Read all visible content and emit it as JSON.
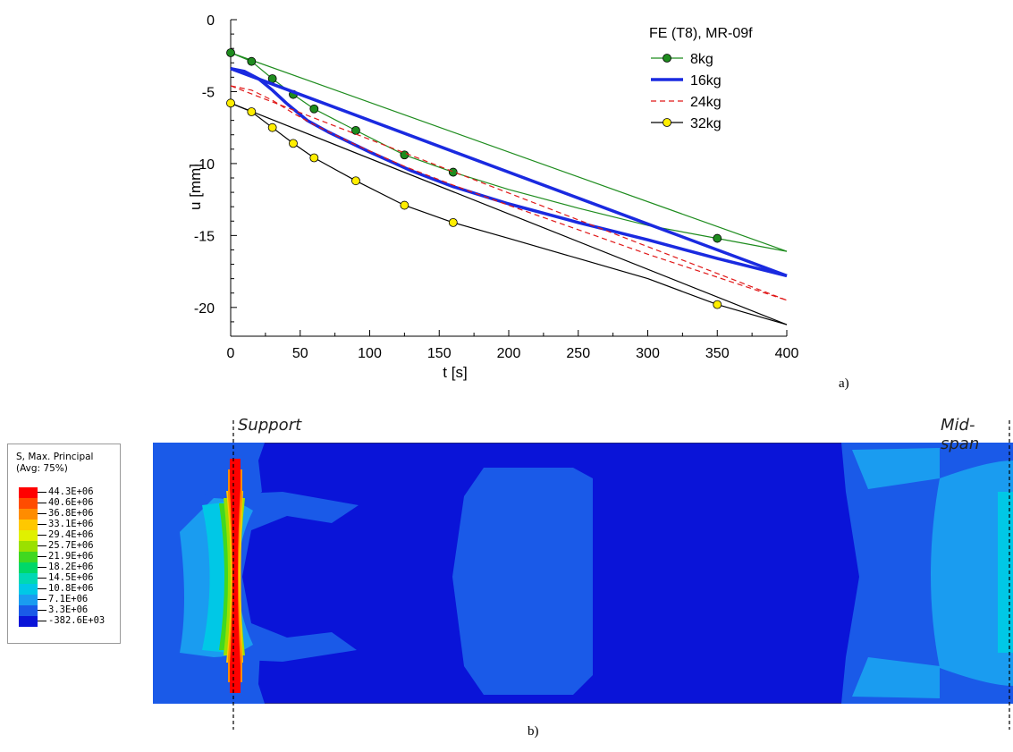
{
  "figure": {
    "caption_a": "a)",
    "caption_b": "b)"
  },
  "chart_data": {
    "type": "line",
    "xlabel": "t  [s]",
    "ylabel": "u  [mm]",
    "xlim": [
      0,
      400
    ],
    "ylim": [
      -22,
      0
    ],
    "xticks": [
      0,
      50,
      100,
      150,
      200,
      250,
      300,
      350,
      400
    ],
    "yticks": [
      0,
      -5,
      -10,
      -15,
      -20
    ],
    "grid": false,
    "legend_title": "FE (T8), MR-09f",
    "legend_position": "top-right",
    "series": [
      {
        "name": "8kg",
        "color": "#1e8c1e",
        "style": "solid-thin",
        "marker": "circle",
        "marker_fill": "#1e8c1e",
        "curve": [
          [
            0,
            -2.3
          ],
          [
            15,
            -2.9
          ],
          [
            30,
            -4.1
          ],
          [
            45,
            -5.2
          ],
          [
            60,
            -6.2
          ],
          [
            90,
            -7.7
          ],
          [
            125,
            -9.4
          ],
          [
            160,
            -10.6
          ],
          [
            200,
            -11.8
          ],
          [
            250,
            -13.1
          ],
          [
            300,
            -14.3
          ],
          [
            350,
            -15.2
          ],
          [
            400,
            -16.1
          ]
        ],
        "markers": [
          [
            0,
            -2.3
          ],
          [
            15,
            -2.9
          ],
          [
            30,
            -4.1
          ],
          [
            45,
            -5.2
          ],
          [
            60,
            -6.2
          ],
          [
            90,
            -7.7
          ],
          [
            125,
            -9.4
          ],
          [
            160,
            -10.6
          ],
          [
            350,
            -15.2
          ]
        ],
        "line": [
          [
            0,
            -2.3
          ],
          [
            400,
            -16.1
          ]
        ]
      },
      {
        "name": "16kg",
        "color": "#1a2ae0",
        "style": "solid-thick",
        "marker": "none",
        "curve": [
          [
            0,
            -3.4
          ],
          [
            10,
            -3.6
          ],
          [
            20,
            -4.1
          ],
          [
            30,
            -4.9
          ],
          [
            40,
            -5.8
          ],
          [
            55,
            -7.0
          ],
          [
            70,
            -7.8
          ],
          [
            100,
            -9.2
          ],
          [
            130,
            -10.5
          ],
          [
            160,
            -11.6
          ],
          [
            200,
            -12.8
          ],
          [
            250,
            -14.1
          ],
          [
            300,
            -15.3
          ],
          [
            350,
            -16.6
          ],
          [
            400,
            -17.8
          ]
        ],
        "line": [
          [
            0,
            -3.4
          ],
          [
            400,
            -17.8
          ]
        ]
      },
      {
        "name": "24kg",
        "color": "#e01818",
        "style": "dashed",
        "marker": "none",
        "curve": [
          [
            0,
            -4.6
          ],
          [
            15,
            -4.9
          ],
          [
            30,
            -5.6
          ],
          [
            45,
            -6.5
          ],
          [
            60,
            -7.3
          ],
          [
            90,
            -8.7
          ],
          [
            125,
            -10.2
          ],
          [
            160,
            -11.5
          ],
          [
            200,
            -12.9
          ],
          [
            250,
            -14.6
          ],
          [
            300,
            -16.3
          ],
          [
            350,
            -17.9
          ],
          [
            400,
            -19.5
          ]
        ],
        "line": [
          [
            0,
            -4.6
          ],
          [
            400,
            -19.5
          ]
        ]
      },
      {
        "name": "32kg",
        "color": "#000000",
        "style": "solid-thin",
        "marker": "circle",
        "marker_fill": "#ffee00",
        "curve": [
          [
            0,
            -5.8
          ],
          [
            15,
            -6.4
          ],
          [
            30,
            -7.5
          ],
          [
            45,
            -8.6
          ],
          [
            60,
            -9.6
          ],
          [
            90,
            -11.2
          ],
          [
            125,
            -12.9
          ],
          [
            160,
            -14.1
          ],
          [
            200,
            -15.2
          ],
          [
            250,
            -16.6
          ],
          [
            300,
            -18.0
          ],
          [
            350,
            -19.8
          ],
          [
            400,
            -21.2
          ]
        ],
        "markers": [
          [
            0,
            -5.8
          ],
          [
            15,
            -6.4
          ],
          [
            30,
            -7.5
          ],
          [
            45,
            -8.6
          ],
          [
            60,
            -9.6
          ],
          [
            90,
            -11.2
          ],
          [
            125,
            -12.9
          ],
          [
            160,
            -14.1
          ],
          [
            350,
            -19.8
          ]
        ],
        "line": [
          [
            0,
            -5.8
          ],
          [
            400,
            -21.2
          ]
        ]
      }
    ]
  },
  "contour": {
    "support_label": "Support",
    "midspan_label": "Mid-span",
    "legend_title_1": "S, Max. Principal",
    "legend_title_2": "(Avg: 75%)",
    "levels": [
      {
        "label": "44.3E+06",
        "color": "#ff0000"
      },
      {
        "label": "40.6E+06",
        "color": "#ff4c00"
      },
      {
        "label": "36.8E+06",
        "color": "#ff8c00"
      },
      {
        "label": "33.1E+06",
        "color": "#ffc800"
      },
      {
        "label": "29.4E+06",
        "color": "#e0f000"
      },
      {
        "label": "25.7E+06",
        "color": "#9ae000"
      },
      {
        "label": "21.9E+06",
        "color": "#40d820"
      },
      {
        "label": "18.2E+06",
        "color": "#00d868"
      },
      {
        "label": "14.5E+06",
        "color": "#00d8b4"
      },
      {
        "label": "10.8E+06",
        "color": "#00c8e6"
      },
      {
        "label": "7.1E+06",
        "color": "#1a9cf0"
      },
      {
        "label": "3.3E+06",
        "color": "#1a5ae8"
      },
      {
        "label": "-382.6E+03",
        "color": "#0a14d8"
      }
    ]
  }
}
